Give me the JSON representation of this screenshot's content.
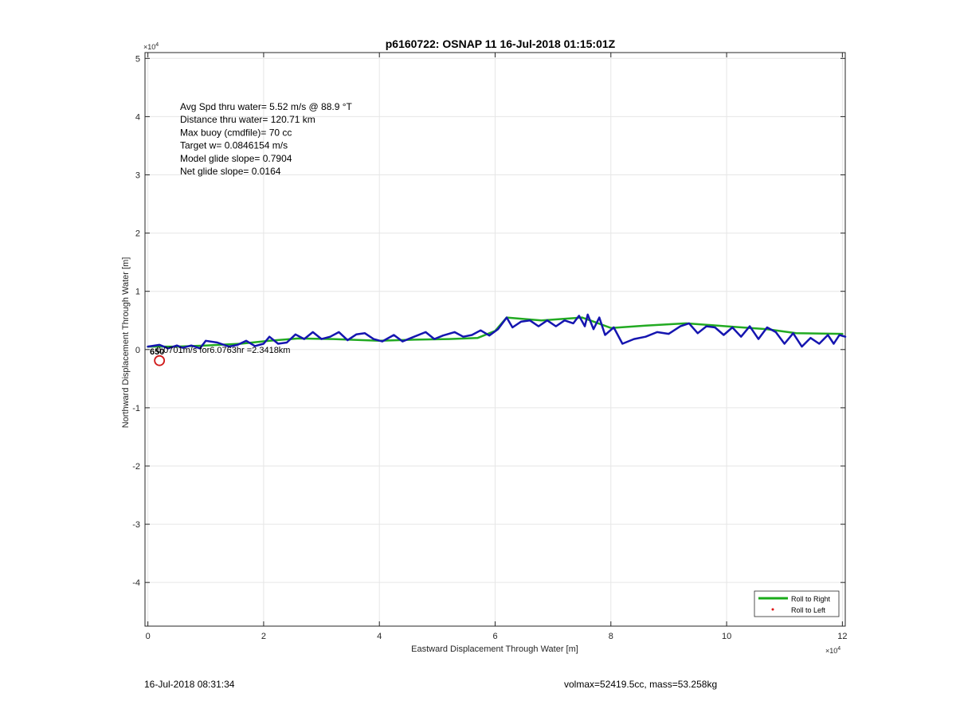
{
  "chart_data": {
    "type": "line",
    "title": "p6160722: OSNAP 11 16-Jul-2018 01:15:01Z",
    "xlabel": "Eastward Displacement Through Water [m]",
    "ylabel": "Northward Displacement Through Water [m]",
    "x_exponent_label": "×10",
    "x_exponent": "4",
    "y_exponent_label": "×10",
    "y_exponent": "4",
    "xlim": [
      -0.05,
      12.05
    ],
    "ylim": [
      -4.75,
      5.1
    ],
    "xticks": [
      0,
      2,
      4,
      6,
      8,
      10,
      12
    ],
    "yticks": [
      -4,
      -3,
      -2,
      -1,
      0,
      1,
      2,
      3,
      4,
      5
    ],
    "grid": true,
    "axis_scale_note": "axis values are in units of 10^4 m",
    "annotations": [
      "Avg Spd thru water=  5.52 m/s @  88.9 °T",
      "Distance thru water= 120.71 km",
      "Max buoy (cmdfile)= 70 cc",
      "Target w= 0.0846154 m/s",
      "Model glide slope= 0.7904",
      "Net glide slope= 0.0164"
    ],
    "current_label": "0.0701m/s for6.0763hr =2.3418km",
    "current_label_overlap": "650",
    "current_marker": {
      "x": 0.2,
      "y": -0.19
    },
    "legend": {
      "placement": "bottom-right",
      "entries": [
        {
          "label": "Roll to Right",
          "color": "#1aab1a",
          "style": "line"
        },
        {
          "label": "Roll to Left",
          "color": "#e01010",
          "style": "dot"
        }
      ]
    },
    "series": [
      {
        "name": "Roll to Right",
        "color": "#22aa22",
        "style": "line",
        "points": [
          [
            0,
            0.05
          ],
          [
            0.5,
            0.05
          ],
          [
            1.0,
            0.07
          ],
          [
            1.6,
            0.1
          ],
          [
            2.1,
            0.15
          ],
          [
            2.6,
            0.19
          ],
          [
            3.2,
            0.18
          ],
          [
            4.0,
            0.15
          ],
          [
            4.6,
            0.17
          ],
          [
            5.2,
            0.18
          ],
          [
            5.7,
            0.2
          ],
          [
            6.0,
            0.32
          ],
          [
            6.2,
            0.55
          ],
          [
            6.8,
            0.5
          ],
          [
            7.5,
            0.55
          ],
          [
            7.7,
            0.48
          ],
          [
            8.0,
            0.37
          ],
          [
            8.6,
            0.41
          ],
          [
            9.3,
            0.45
          ],
          [
            10.0,
            0.4
          ],
          [
            10.7,
            0.35
          ],
          [
            11.2,
            0.28
          ],
          [
            12.0,
            0.27
          ]
        ]
      },
      {
        "name": "",
        "color": "#1515b0",
        "style": "line",
        "points": [
          [
            0.0,
            0.05
          ],
          [
            0.2,
            0.08
          ],
          [
            0.35,
            0.02
          ],
          [
            0.5,
            0.07
          ],
          [
            0.6,
            0.03
          ],
          [
            0.75,
            0.07
          ],
          [
            0.9,
            0.02
          ],
          [
            1.0,
            0.15
          ],
          [
            1.2,
            0.12
          ],
          [
            1.4,
            0.05
          ],
          [
            1.55,
            0.08
          ],
          [
            1.7,
            0.15
          ],
          [
            1.85,
            0.06
          ],
          [
            2.0,
            0.1
          ],
          [
            2.1,
            0.22
          ],
          [
            2.25,
            0.1
          ],
          [
            2.4,
            0.12
          ],
          [
            2.55,
            0.26
          ],
          [
            2.7,
            0.18
          ],
          [
            2.85,
            0.3
          ],
          [
            3.0,
            0.18
          ],
          [
            3.15,
            0.22
          ],
          [
            3.3,
            0.3
          ],
          [
            3.45,
            0.16
          ],
          [
            3.6,
            0.26
          ],
          [
            3.75,
            0.28
          ],
          [
            3.9,
            0.18
          ],
          [
            4.05,
            0.14
          ],
          [
            4.25,
            0.25
          ],
          [
            4.4,
            0.14
          ],
          [
            4.6,
            0.22
          ],
          [
            4.8,
            0.3
          ],
          [
            4.95,
            0.18
          ],
          [
            5.1,
            0.24
          ],
          [
            5.3,
            0.3
          ],
          [
            5.45,
            0.22
          ],
          [
            5.6,
            0.25
          ],
          [
            5.75,
            0.33
          ],
          [
            5.9,
            0.24
          ],
          [
            6.05,
            0.35
          ],
          [
            6.2,
            0.55
          ],
          [
            6.3,
            0.38
          ],
          [
            6.45,
            0.48
          ],
          [
            6.6,
            0.5
          ],
          [
            6.75,
            0.4
          ],
          [
            6.9,
            0.5
          ],
          [
            7.05,
            0.4
          ],
          [
            7.2,
            0.5
          ],
          [
            7.35,
            0.45
          ],
          [
            7.45,
            0.58
          ],
          [
            7.55,
            0.4
          ],
          [
            7.6,
            0.6
          ],
          [
            7.7,
            0.35
          ],
          [
            7.8,
            0.55
          ],
          [
            7.9,
            0.25
          ],
          [
            8.05,
            0.38
          ],
          [
            8.2,
            0.1
          ],
          [
            8.4,
            0.18
          ],
          [
            8.6,
            0.22
          ],
          [
            8.8,
            0.3
          ],
          [
            9.0,
            0.27
          ],
          [
            9.2,
            0.4
          ],
          [
            9.35,
            0.45
          ],
          [
            9.5,
            0.28
          ],
          [
            9.65,
            0.4
          ],
          [
            9.8,
            0.38
          ],
          [
            9.95,
            0.25
          ],
          [
            10.1,
            0.38
          ],
          [
            10.25,
            0.22
          ],
          [
            10.4,
            0.4
          ],
          [
            10.55,
            0.18
          ],
          [
            10.7,
            0.38
          ],
          [
            10.85,
            0.3
          ],
          [
            11.0,
            0.1
          ],
          [
            11.15,
            0.28
          ],
          [
            11.3,
            0.05
          ],
          [
            11.45,
            0.2
          ],
          [
            11.6,
            0.1
          ],
          [
            11.75,
            0.25
          ],
          [
            11.85,
            0.1
          ],
          [
            11.95,
            0.25
          ],
          [
            12.05,
            0.22
          ]
        ]
      }
    ]
  },
  "footer": {
    "timestamp": "16-Jul-2018 08:31:34",
    "summary": "volmax=52419.5cc, mass=53.258kg"
  }
}
